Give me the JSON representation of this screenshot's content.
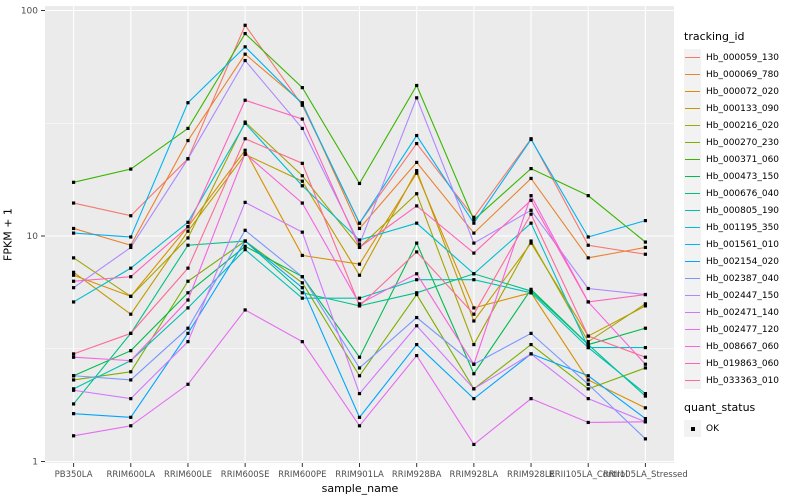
{
  "chart_data": {
    "type": "line",
    "xlabel": "sample_name",
    "ylabel": "FPKM + 1",
    "y_scale": "log10",
    "ylim": [
      1,
      100
    ],
    "y_ticks": [
      {
        "value": 1,
        "label": "1"
      },
      {
        "value": 10,
        "label": "10"
      },
      {
        "value": 100,
        "label": "100"
      }
    ],
    "y_minor_breaks": [
      3.1623,
      31.6228
    ],
    "grid": {
      "major": true,
      "minor": true
    },
    "point_marker": "black-square",
    "categories": [
      "PB350LA",
      "RRIM600LA",
      "RRIM600LE",
      "RRIM600SE",
      "RRIM600PE",
      "RRIM901LA",
      "RRIM928BA",
      "RRIM928LA",
      "RRIM928LE",
      "RRII105LA_Control",
      "RRII105LA_Stressed"
    ],
    "legend": {
      "position": "right",
      "tracking_id_title": "tracking_id",
      "quant_status_title": "quant_status",
      "quant_status_items": [
        {
          "label": "OK",
          "marker": "black-square"
        }
      ]
    },
    "series": [
      {
        "name": "Hb_000059_130",
        "color": "#F8766D",
        "values": [
          14,
          12.3,
          22,
          86,
          38,
          11.4,
          25.7,
          12.1,
          27,
          9.1,
          8.3
        ]
      },
      {
        "name": "Hb_000069_780",
        "color": "#EA8331",
        "values": [
          10.8,
          9.1,
          26.5,
          64,
          39,
          10.8,
          21.2,
          10.3,
          18,
          8.0,
          8.9
        ]
      },
      {
        "name": "Hb_000072_020",
        "color": "#D89000",
        "values": [
          6.7,
          5.4,
          11,
          24,
          8.2,
          7.5,
          19,
          4.8,
          5.6,
          2.3,
          1.73
        ]
      },
      {
        "name": "Hb_000133_090",
        "color": "#C09B00",
        "values": [
          6.9,
          4.5,
          10.5,
          23,
          17.5,
          6.7,
          19.5,
          4.2,
          9.3,
          3.6,
          4.9
        ]
      },
      {
        "name": "Hb_000216_020",
        "color": "#A3A500",
        "values": [
          8.0,
          5.4,
          9.8,
          32,
          18.5,
          8.9,
          15.4,
          3.3,
          9.5,
          3.4,
          5.0
        ]
      },
      {
        "name": "Hb_000270_230",
        "color": "#7CAE00",
        "values": [
          2.3,
          2.5,
          6.3,
          9.5,
          6.2,
          2.4,
          5.5,
          2.1,
          3.3,
          2.1,
          2.6
        ]
      },
      {
        "name": "Hb_000371_060",
        "color": "#39B600",
        "values": [
          17.3,
          19.8,
          30,
          79,
          45.5,
          17.1,
          46.5,
          11.8,
          19.9,
          15.1,
          9.4
        ]
      },
      {
        "name": "Hb_000473_150",
        "color": "#00BB4E",
        "values": [
          2.4,
          3.1,
          5.6,
          9.0,
          6.6,
          2.9,
          9.3,
          2.45,
          5.8,
          3.3,
          3.9
        ]
      },
      {
        "name": "Hb_000676_040",
        "color": "#00C087",
        "values": [
          1.8,
          3.7,
          9.1,
          9.5,
          5.6,
          4.9,
          5.6,
          6.8,
          5.7,
          3.3,
          1.95
        ]
      },
      {
        "name": "Hb_000805_190",
        "color": "#00C0B2",
        "values": [
          2.1,
          2.8,
          4.8,
          8.7,
          5.3,
          5.3,
          6.4,
          6.4,
          5.6,
          3.2,
          2.0
        ]
      },
      {
        "name": "Hb_001195_350",
        "color": "#00BDD0",
        "values": [
          5.1,
          7.2,
          11.5,
          31.6,
          16.7,
          9.6,
          11.4,
          6.8,
          11.4,
          3.2,
          3.2
        ]
      },
      {
        "name": "Hb_001561_010",
        "color": "#00B4EF",
        "values": [
          10.3,
          9.9,
          39,
          69,
          38.5,
          11.4,
          27.9,
          11.4,
          26.8,
          9.9,
          11.7
        ]
      },
      {
        "name": "Hb_002154_020",
        "color": "#00A5FF",
        "values": [
          1.63,
          1.57,
          3.7,
          9.5,
          5.9,
          1.57,
          3.3,
          1.9,
          3.0,
          2.4,
          1.55
        ]
      },
      {
        "name": "Hb_002387_040",
        "color": "#7997FF",
        "values": [
          2.4,
          2.3,
          3.9,
          10.6,
          6.6,
          2.6,
          4.35,
          2.7,
          3.7,
          2.2,
          1.26
        ]
      },
      {
        "name": "Hb_002447_150",
        "color": "#AC88FF",
        "values": [
          5.9,
          8.9,
          22,
          60,
          30,
          9.2,
          41,
          9.3,
          13,
          5.85,
          5.5
        ]
      },
      {
        "name": "Hb_002471_140",
        "color": "#CF78FF",
        "values": [
          2.07,
          1.9,
          3.4,
          14.1,
          10.4,
          2.0,
          4.0,
          2.1,
          3.0,
          1.9,
          1.5
        ]
      },
      {
        "name": "Hb_002477_120",
        "color": "#E76BF3",
        "values": [
          1.3,
          1.44,
          2.2,
          4.7,
          3.4,
          1.44,
          2.95,
          1.19,
          1.9,
          1.49,
          1.5
        ]
      },
      {
        "name": "Hb_008667_060",
        "color": "#F763E0",
        "values": [
          2.9,
          2.8,
          5.2,
          23.2,
          14,
          5.0,
          6.8,
          2.7,
          15.1,
          5.1,
          2.7
        ]
      },
      {
        "name": "Hb_019863_060",
        "color": "#FF62BC",
        "values": [
          6.3,
          6.6,
          11,
          40,
          33,
          8.9,
          13.6,
          8.4,
          14.4,
          5.1,
          5.5
        ]
      },
      {
        "name": "Hb_033363_010",
        "color": "#FF6A98",
        "values": [
          3.0,
          3.7,
          7.2,
          27,
          21,
          4.9,
          8.5,
          4.5,
          12.5,
          3.6,
          2.9
        ]
      }
    ],
    "colors": {
      "panel_background": "#EBEBEB",
      "grid": "#FFFFFF",
      "tick_mark": "#333333",
      "tick_label": "#4D4D4D",
      "point": "#000000",
      "legend_key_background": "#F2F2F2"
    }
  }
}
